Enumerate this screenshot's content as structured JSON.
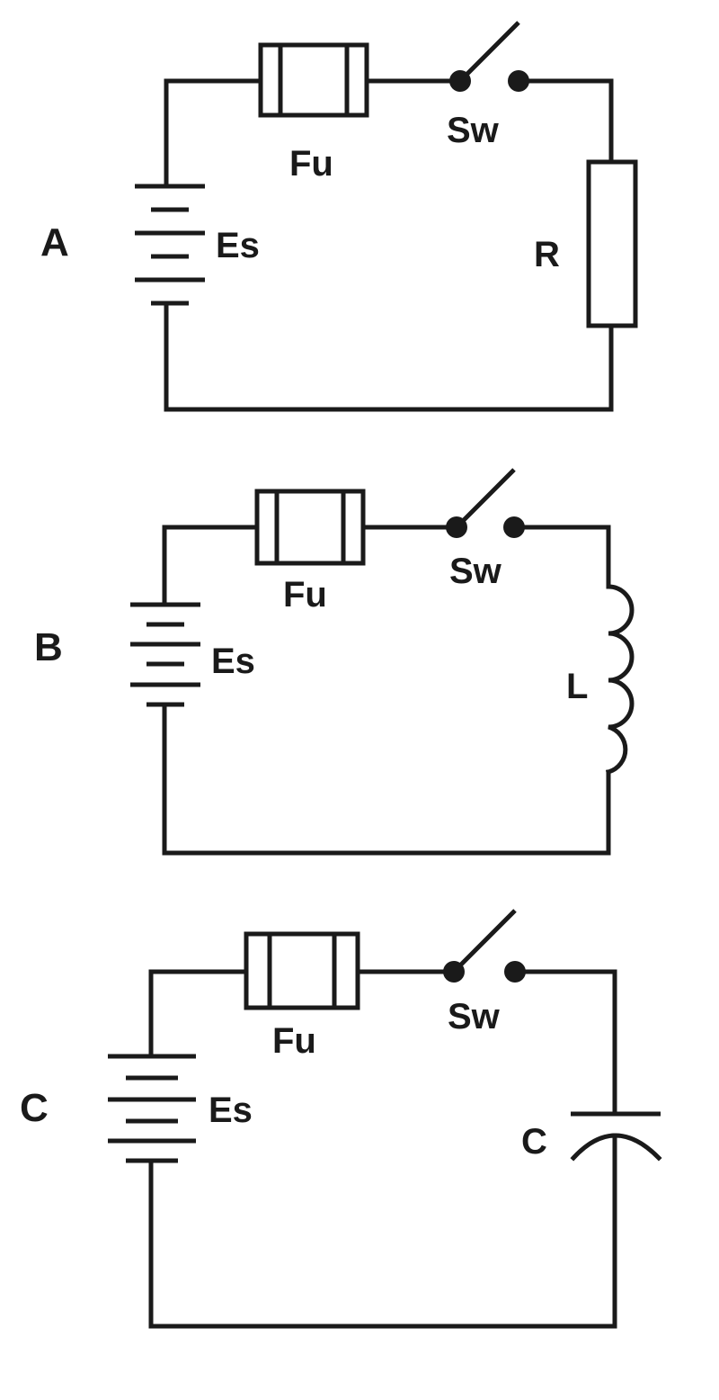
{
  "circuits": [
    {
      "letter": "A",
      "battery_label": "Es",
      "fuse_label": "Fu",
      "switch_label": "Sw",
      "load_label": "R",
      "load_type": "resistor"
    },
    {
      "letter": "B",
      "battery_label": "Es",
      "fuse_label": "Fu",
      "switch_label": "Sw",
      "load_label": "L",
      "load_type": "inductor"
    },
    {
      "letter": "C",
      "battery_label": "Es",
      "fuse_label": "Fu",
      "switch_label": "Sw",
      "load_label": "C",
      "load_type": "capacitor"
    }
  ]
}
